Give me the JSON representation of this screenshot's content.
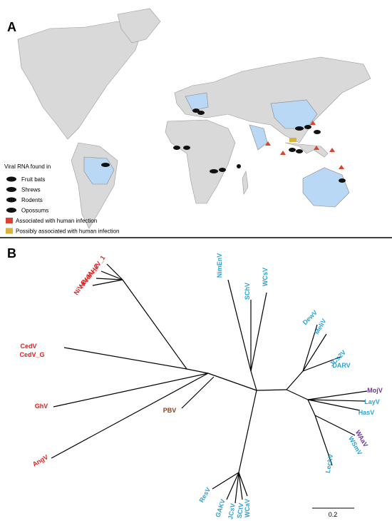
{
  "panels": [
    {
      "label": "A"
    },
    {
      "label": "B"
    }
  ],
  "legend": {
    "title": "Viral RNA found in",
    "items": [
      {
        "label": "Fruit bats"
      },
      {
        "label": "Shrews"
      },
      {
        "label": "Rodents"
      },
      {
        "label": "Opossums"
      },
      {
        "label": "Associated with human infection",
        "color": "#d8452f"
      },
      {
        "label": "Possibly associated with human infection",
        "color": "#d9b23a"
      }
    ]
  },
  "tree": {
    "scale_label": "0.2",
    "leaves": [
      {
        "label": "HeV_1",
        "color": "#e02020"
      },
      {
        "label": "HeV_2",
        "color": "#e02020"
      },
      {
        "label": "NiV-M",
        "color": "#e02020"
      },
      {
        "label": "NiV-B",
        "color": "#e02020"
      },
      {
        "label": "CedV",
        "color": "#e02020"
      },
      {
        "label": "CedV_G",
        "color": "#e02020"
      },
      {
        "label": "GhV",
        "color": "#e02020"
      },
      {
        "label": "AngV",
        "color": "#e02020"
      },
      {
        "label": "PBV",
        "color": "#8b4513"
      },
      {
        "label": "NimEnV",
        "color": "#2aa4d8"
      },
      {
        "label": "SChV",
        "color": "#2aa4d8"
      },
      {
        "label": "WCsV",
        "color": "#2aa4d8"
      },
      {
        "label": "DewV",
        "color": "#2aa4d8"
      },
      {
        "label": "MeliV",
        "color": "#2aa4d8"
      },
      {
        "label": "JCs2V",
        "color": "#2aa4d8"
      },
      {
        "label": "DARV",
        "color": "#2aa4d8"
      },
      {
        "label": "MojV",
        "color": "#7030a0"
      },
      {
        "label": "LayV",
        "color": "#2aa4d8"
      },
      {
        "label": "HasV",
        "color": "#2aa4d8"
      },
      {
        "label": "WAaV",
        "color": "#7030a0"
      },
      {
        "label": "WSmV",
        "color": "#2aa4d8"
      },
      {
        "label": "LechV",
        "color": "#2aa4d8"
      },
      {
        "label": "ResV",
        "color": "#2aa4d8"
      },
      {
        "label": "GAKV",
        "color": "#2aa4d8"
      },
      {
        "label": "JCsV",
        "color": "#2aa4d8"
      },
      {
        "label": "SCtV",
        "color": "#2aa4d8"
      },
      {
        "label": "WCaV",
        "color": "#2aa4d8"
      }
    ]
  }
}
